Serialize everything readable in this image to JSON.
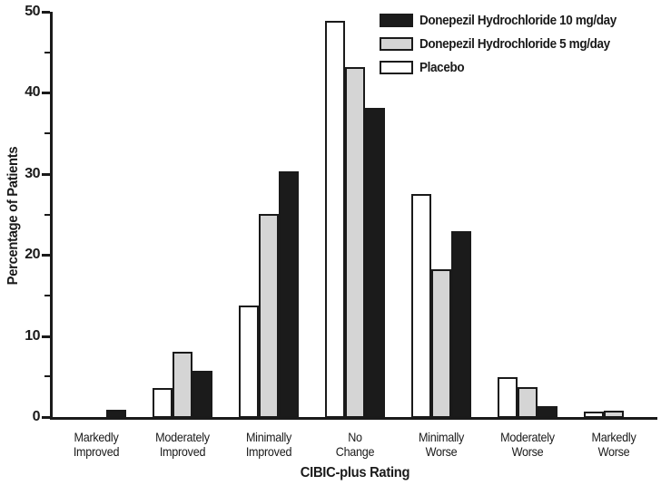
{
  "chart_data": {
    "type": "bar",
    "title": "",
    "xlabel": "CIBIC-plus Rating",
    "ylabel": "Percentage of Patients",
    "ylim": [
      0,
      50
    ],
    "y_major_ticks": [
      0,
      10,
      20,
      30,
      40,
      50
    ],
    "y_minor_ticks": [
      5,
      15,
      25,
      35,
      45
    ],
    "grid": false,
    "legend_position": "top-right",
    "categories": [
      "Markedly\nImproved",
      "Moderately\nImproved",
      "Minimally\nImproved",
      "No\nChange",
      "Minimally\nWorse",
      "Moderately\nWorse",
      "Markedly\nWorse"
    ],
    "series": [
      {
        "name": "Placebo",
        "fill": "#ffffff",
        "values": [
          0,
          3.7,
          13.9,
          49.0,
          27.6,
          5.0,
          0.8
        ]
      },
      {
        "name": "Donepezil Hydrochloride 5 mg/day",
        "fill": "#d5d5d5",
        "values": [
          0,
          8.2,
          25.2,
          43.3,
          18.4,
          3.8,
          0.9
        ]
      },
      {
        "name": "Donepezil Hydrochloride 10 mg/day",
        "fill": "#1b1b1b",
        "values": [
          1.0,
          5.8,
          30.4,
          38.3,
          23.0,
          1.5,
          0
        ]
      }
    ],
    "legend": [
      {
        "label": "Donepezil Hydrochloride 10 mg/day",
        "fill": "#1b1b1b"
      },
      {
        "label": "Donepezil Hydrochloride 5 mg/day",
        "fill": "#d5d5d5"
      },
      {
        "label": "Placebo",
        "fill": "#ffffff"
      }
    ],
    "colors": {
      "ink": "#1a1a1a",
      "background": "#ffffff"
    }
  }
}
